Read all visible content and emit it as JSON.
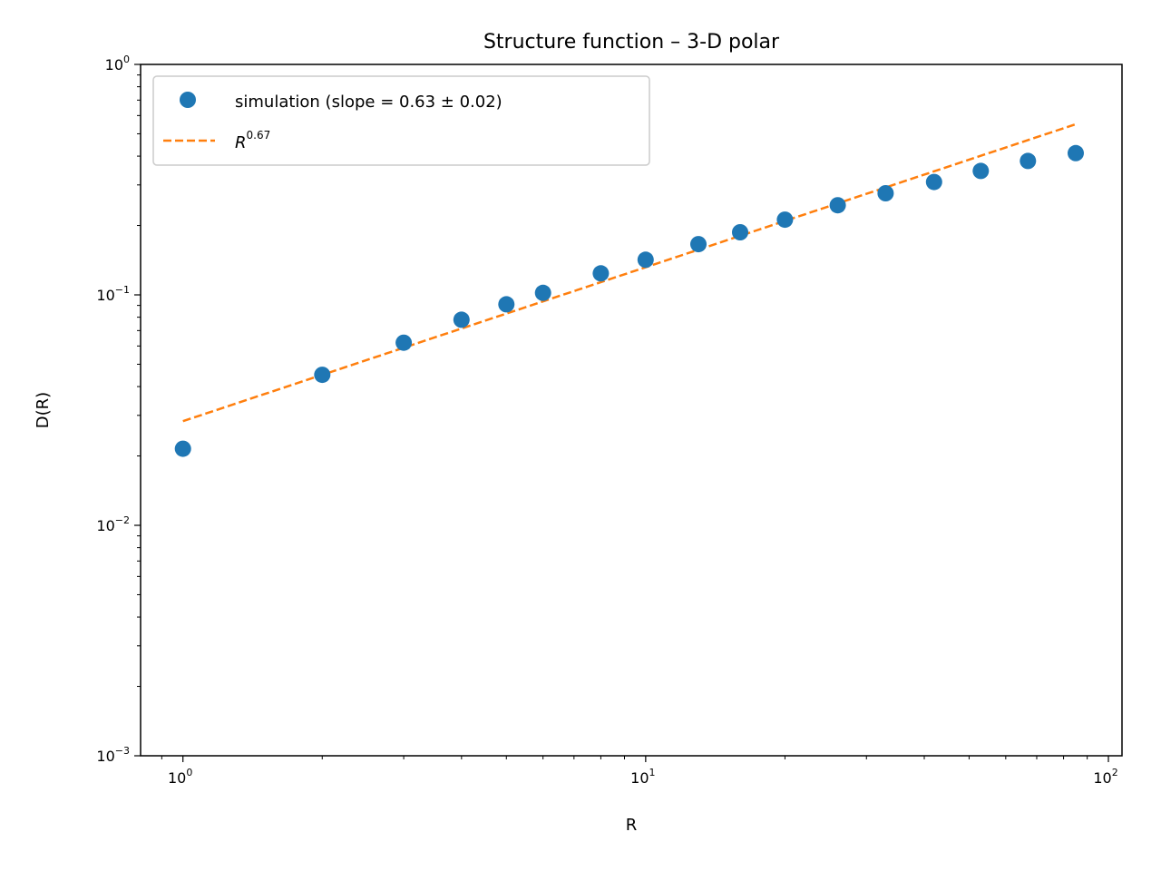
{
  "chart_data": {
    "type": "scatter",
    "title": "Structure function – 3-D polar",
    "xlabel": "R",
    "ylabel": "D(R)",
    "xscale": "log",
    "yscale": "log",
    "xlim": [
      0.81,
      107
    ],
    "ylim": [
      0.001,
      1
    ],
    "grid": false,
    "legend_position": "top-left",
    "x_ticks": [
      {
        "base": "10",
        "exp": "0"
      },
      {
        "base": "10",
        "exp": "1"
      },
      {
        "base": "10",
        "exp": "2"
      }
    ],
    "y_ticks": [
      {
        "base": "10",
        "exp": "−3"
      },
      {
        "base": "10",
        "exp": "−2"
      },
      {
        "base": "10",
        "exp": "−1"
      },
      {
        "base": "10",
        "exp": "0"
      }
    ],
    "series": [
      {
        "name": "simulation (slope = 0.63 ± 0.02)",
        "kind": "markers",
        "color": "#1f77b4",
        "x": [
          1,
          2,
          3,
          4,
          5,
          6,
          8,
          10,
          13,
          16,
          20,
          26,
          33,
          42,
          53,
          67,
          85
        ],
        "y": [
          0.0215,
          0.045,
          0.062,
          0.078,
          0.091,
          0.102,
          0.124,
          0.142,
          0.166,
          0.187,
          0.212,
          0.245,
          0.276,
          0.309,
          0.345,
          0.381,
          0.412
        ]
      },
      {
        "name_base": "R",
        "name_sup": "0.67",
        "kind": "dashed-line",
        "color": "#ff7f0e",
        "x": [
          1,
          85
        ],
        "y": [
          0.0283,
          0.5501
        ]
      }
    ]
  }
}
